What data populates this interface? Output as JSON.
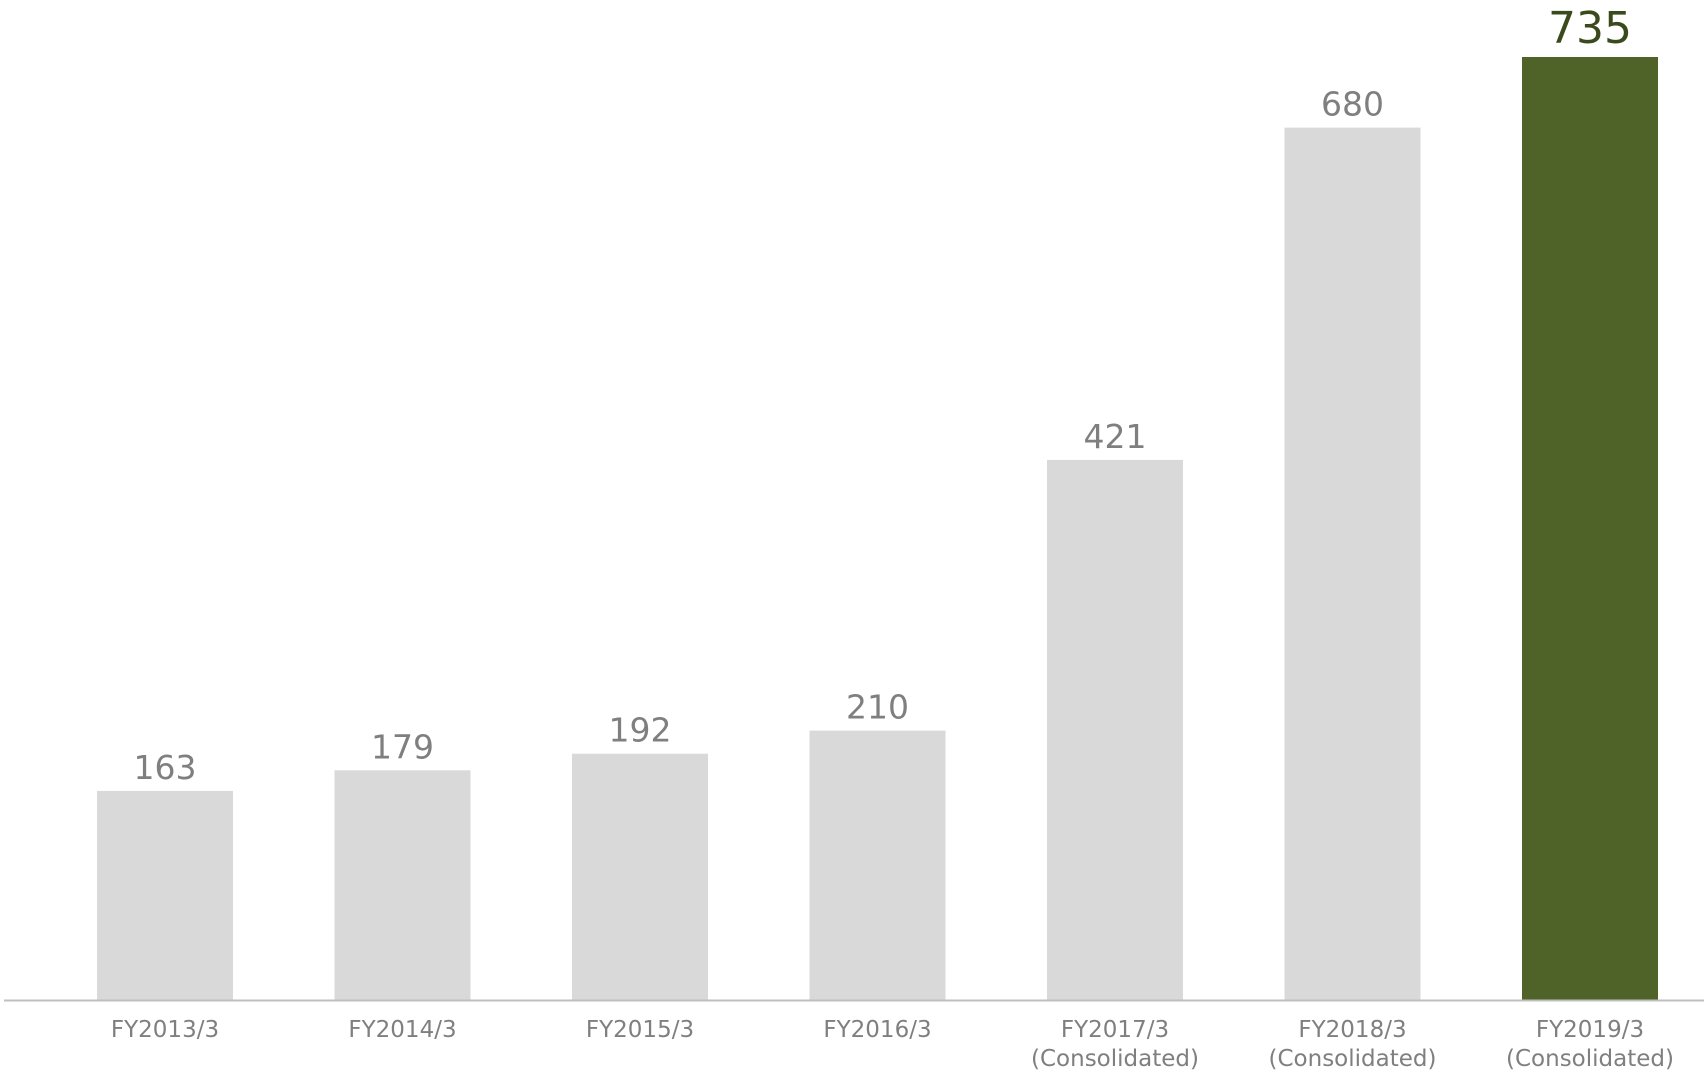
{
  "chart_data": {
    "type": "bar",
    "title": "",
    "xlabel": "",
    "ylabel": "",
    "ylim": [
      0,
      735
    ],
    "grid": false,
    "legend": "none",
    "categories": [
      [
        "FY2013/3"
      ],
      [
        "FY2014/3"
      ],
      [
        "FY2015/3"
      ],
      [
        "FY2016/3"
      ],
      [
        "FY2017/3",
        "(Consolidated)"
      ],
      [
        "FY2018/3",
        "(Consolidated)"
      ],
      [
        "FY2019/3",
        "(Consolidated)"
      ]
    ],
    "values": [
      163,
      179,
      192,
      210,
      421,
      680,
      735
    ],
    "data_labels": [
      "163",
      "179",
      "192",
      "210",
      "421",
      "680",
      "735"
    ],
    "highlight_index": 6
  },
  "colors": {
    "bar": "#d9d9d9",
    "highlight": "#4f6228",
    "label": "#7f7f7f",
    "highlight_label": "#3b4a1c",
    "axis": "#bfbfbf"
  }
}
